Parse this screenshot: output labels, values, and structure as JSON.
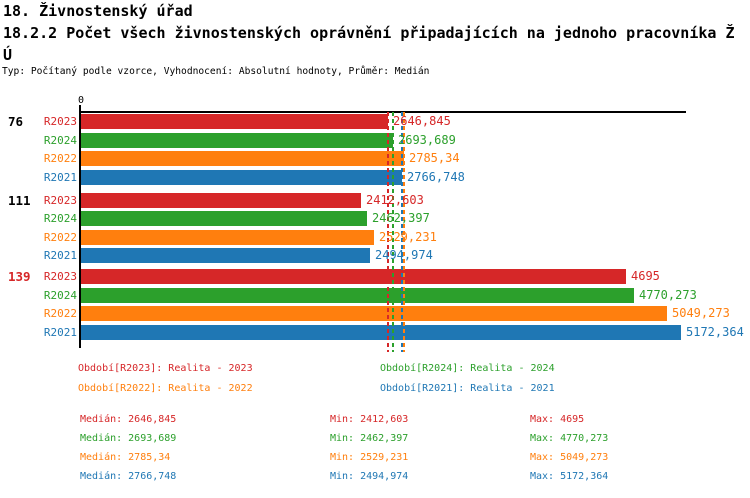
{
  "header": {
    "title_line1": "18. Živnostenský úřad",
    "title_line2": "18.2.2 Počet všech živnostenských oprávnění připadajících na jednoho pracovníka Ž",
    "title_line3": "Ú",
    "subtitle": "Typ: Počítaný podle vzorce, Vyhodnocení: Absolutní hodnoty, Průměr: Medián"
  },
  "chart_data": {
    "type": "bar",
    "orientation": "horizontal",
    "title": "18.2.2 Počet všech živnostenských oprávnění připadajících na jednoho pracovníka ŽÚ",
    "axis": {
      "origin_label": "0",
      "xlim": [
        0,
        5216
      ],
      "grid": false
    },
    "series": [
      {
        "name": "R2023",
        "color": "#d62728"
      },
      {
        "name": "R2024",
        "color": "#2ca02c"
      },
      {
        "name": "R2022",
        "color": "#ff7f0e"
      },
      {
        "name": "R2021",
        "color": "#1f77b4"
      }
    ],
    "groups": [
      {
        "label": "76",
        "label_color": "#000000",
        "values": [
          2646.845,
          2693.689,
          2785.34,
          2766.748
        ],
        "value_labels": [
          "2646,845",
          "2693,689",
          "2785,34",
          "2766,748"
        ]
      },
      {
        "label": "111",
        "label_color": "#000000",
        "values": [
          2412.603,
          2462.397,
          2529.231,
          2494.974
        ],
        "value_labels": [
          "2412,603",
          "2462,397",
          "2529,231",
          "2494,974"
        ]
      },
      {
        "label": "139",
        "label_color": "#d62728",
        "values": [
          4695,
          4770.273,
          5049.273,
          5172.364
        ],
        "value_labels": [
          "4695",
          "4770,273",
          "5049,273",
          "5172,364"
        ]
      }
    ],
    "median_lines": [
      {
        "series": "R2023",
        "value": 2646.845,
        "color": "#d62728"
      },
      {
        "series": "R2024",
        "value": 2693.689,
        "color": "#2ca02c"
      },
      {
        "series": "R2021",
        "value": 2766.748,
        "color": "#1f77b4"
      },
      {
        "series": "R2022",
        "value": 2785.34,
        "color": "#ff7f0e"
      }
    ]
  },
  "legend": {
    "items": [
      {
        "text": "Období[R2023]: Realita - 2023",
        "color": "#d62728"
      },
      {
        "text": "Období[R2024]: Realita - 2024",
        "color": "#2ca02c"
      },
      {
        "text": "Období[R2022]: Realita - 2022",
        "color": "#ff7f0e"
      },
      {
        "text": "Období[R2021]: Realita - 2021",
        "color": "#1f77b4"
      }
    ]
  },
  "stats": {
    "rows": [
      {
        "color": "#d62728",
        "median": "Medián: 2646,845",
        "min": "Min: 2412,603",
        "max": "Max: 4695"
      },
      {
        "color": "#2ca02c",
        "median": "Medián: 2693,689",
        "min": "Min: 2462,397",
        "max": "Max: 4770,273"
      },
      {
        "color": "#ff7f0e",
        "median": "Medián: 2785,34",
        "min": "Min: 2529,231",
        "max": "Max: 5049,273"
      },
      {
        "color": "#1f77b4",
        "median": "Medián: 2766,748",
        "min": "Min: 2494,974",
        "max": "Max: 5172,364"
      }
    ]
  }
}
